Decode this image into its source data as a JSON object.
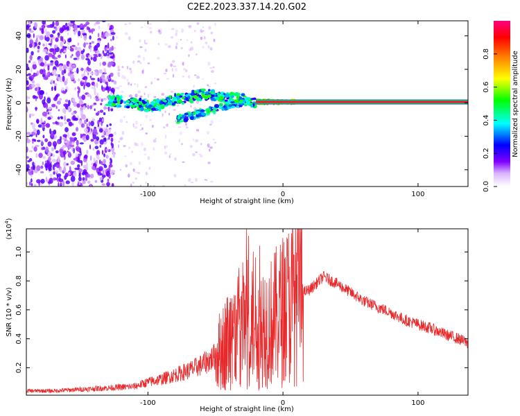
{
  "page_title": "C2E2.2023.337.14.20.G02",
  "colors": {
    "snr_line": "#e8292b",
    "axis": "#000000"
  },
  "chart_data": [
    {
      "type": "heatmap",
      "title": "C2E2.2023.337.14.20.G02",
      "xlabel": "Height of straight line (km)",
      "ylabel": "Frequency (Hz)",
      "xlim": [
        -190,
        137
      ],
      "ylim": [
        -50,
        49
      ],
      "xticks": [
        -100,
        0,
        100
      ],
      "xtick_labels": [
        "-100",
        "0",
        "100"
      ],
      "yticks": [
        -40,
        -20,
        0,
        20,
        40
      ],
      "ytick_labels": [
        "-40",
        "-20",
        "0",
        "20",
        "40"
      ],
      "ridge": {
        "description_points_x": [
          -125,
          -110,
          -100,
          -90,
          -80,
          -70,
          -60,
          -50,
          -40,
          -30,
          -20,
          -10,
          0,
          10,
          50,
          100,
          137
        ],
        "description_points_y": [
          1,
          0,
          -2,
          -1,
          2,
          3,
          5,
          5,
          3,
          2,
          0.5,
          0.5,
          0.5,
          0.5,
          0.5,
          0.5,
          0.5
        ]
      },
      "colorbar": {
        "label": "Normalized spectral amplitude",
        "range": [
          0.0,
          1.0
        ],
        "ticks": [
          0.0,
          0.2,
          0.4,
          0.6,
          0.8
        ],
        "tick_labels": [
          "0.0",
          "0.2",
          "0.4",
          "0.6",
          "0.8"
        ]
      }
    },
    {
      "type": "line",
      "xlabel": "Height of straight line (km)",
      "ylabel": "SNR (10 * v/v)",
      "y_multiplier_label": "(x10",
      "y_multiplier_exp": "4",
      "y_multiplier_close": ")",
      "xlim": [
        -190,
        137
      ],
      "ylim": [
        0.01,
        1.16
      ],
      "xticks": [
        -100,
        0,
        100
      ],
      "xtick_labels": [
        "-100",
        "0",
        "100"
      ],
      "yticks": [
        0.2,
        0.4,
        0.6,
        0.8,
        1.0
      ],
      "ytick_labels": [
        "0.2",
        "0.4",
        "0.6",
        "0.8",
        "1.0"
      ],
      "series": [
        {
          "name": "SNR",
          "x": [
            -190,
            -170,
            -150,
            -130,
            -110,
            -100,
            -90,
            -80,
            -70,
            -60,
            -50,
            -40,
            -30,
            -20,
            -10,
            0,
            10,
            20,
            30,
            40,
            50,
            60,
            70,
            80,
            90,
            100,
            110,
            120,
            130,
            137
          ],
          "y": [
            0.04,
            0.04,
            0.05,
            0.06,
            0.07,
            0.1,
            0.12,
            0.15,
            0.18,
            0.22,
            0.28,
            0.4,
            0.5,
            0.55,
            0.5,
            0.6,
            0.7,
            0.74,
            0.83,
            0.78,
            0.72,
            0.66,
            0.62,
            0.58,
            0.53,
            0.5,
            0.47,
            0.43,
            0.4,
            0.37
          ]
        }
      ]
    }
  ]
}
